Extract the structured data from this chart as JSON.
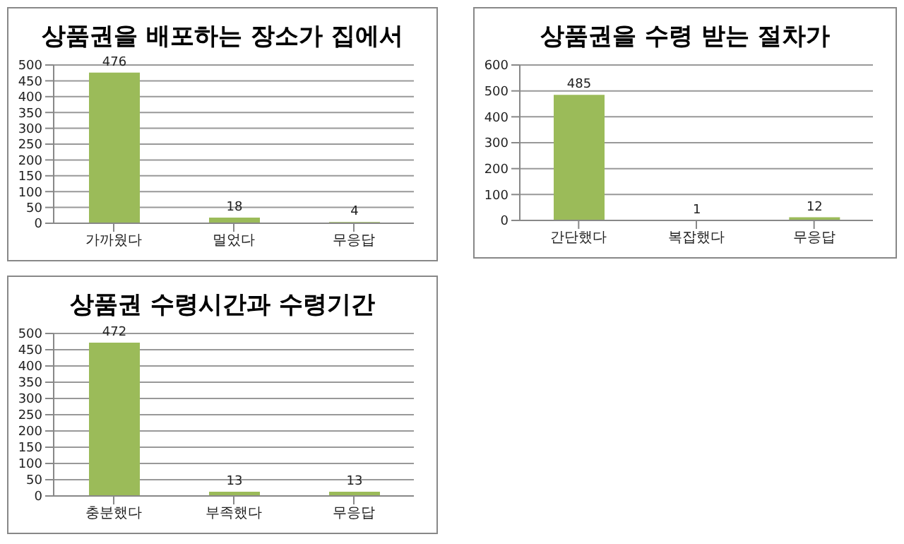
{
  "chart_data": [
    {
      "type": "bar",
      "title": "상품권을 배포하는 장소가 집에서",
      "categories": [
        "가까웠다",
        "멀었다",
        "무응답"
      ],
      "values": [
        476,
        18,
        4
      ],
      "color": "#9bbb59",
      "ylim": [
        0,
        500
      ],
      "yticks": [
        0,
        50,
        100,
        150,
        200,
        250,
        300,
        350,
        400,
        450,
        500
      ],
      "grid": "y",
      "data_labels": true,
      "legend": false
    },
    {
      "type": "bar",
      "title": "상품권을 수령 받는 절차가",
      "categories": [
        "간단했다",
        "복잡했다",
        "무응답"
      ],
      "values": [
        485,
        1,
        12
      ],
      "color": "#9bbb59",
      "ylim": [
        0,
        600
      ],
      "yticks": [
        0,
        100,
        200,
        300,
        400,
        500,
        600
      ],
      "grid": "y",
      "data_labels": true,
      "legend": false
    },
    {
      "type": "bar",
      "title": "상품권 수령시간과 수령기간",
      "categories": [
        "충분했다",
        "부족했다",
        "무응답"
      ],
      "values": [
        472,
        13,
        13
      ],
      "color": "#9bbb59",
      "ylim": [
        0,
        500
      ],
      "yticks": [
        0,
        50,
        100,
        150,
        200,
        250,
        300,
        350,
        400,
        450,
        500
      ],
      "grid": "y",
      "data_labels": true,
      "legend": false
    }
  ]
}
